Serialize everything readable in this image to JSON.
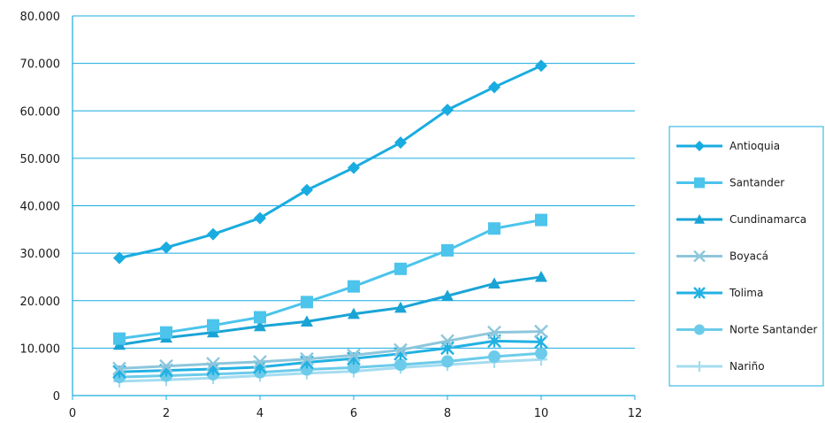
{
  "chart_data": {
    "type": "line",
    "title": "",
    "xlabel": "",
    "ylabel": "",
    "xlim": [
      0,
      12
    ],
    "ylim": [
      0,
      80000
    ],
    "x_ticks": [
      0,
      2,
      4,
      6,
      8,
      10,
      12
    ],
    "y_ticks": [
      0,
      10000,
      20000,
      30000,
      40000,
      50000,
      60000,
      70000,
      80000
    ],
    "x_tick_labels": [
      "0",
      "2",
      "4",
      "6",
      "8",
      "10",
      "12"
    ],
    "y_tick_labels": [
      "0",
      "10.000",
      "20.000",
      "30.000",
      "40.000",
      "50.000",
      "60.000",
      "70.000",
      "80.000"
    ],
    "grid": "horizontal",
    "legend_position": "right",
    "x": [
      1,
      2,
      3,
      4,
      5,
      6,
      7,
      8,
      9,
      10
    ],
    "series": [
      {
        "name": "Antioquia",
        "marker": "diamond",
        "color": "#19ace0",
        "values": [
          29000,
          31200,
          34000,
          37400,
          43300,
          48000,
          53300,
          60200,
          65000,
          69500
        ]
      },
      {
        "name": "Santander",
        "marker": "square",
        "color": "#4cc4ec",
        "values": [
          12000,
          13300,
          14800,
          16500,
          19700,
          23000,
          26700,
          30600,
          35200,
          37000
        ]
      },
      {
        "name": "Cundinamarca",
        "marker": "triangle",
        "color": "#1aa4d6",
        "values": [
          10700,
          12200,
          13300,
          14600,
          15600,
          17200,
          18500,
          21000,
          23600,
          25000
        ]
      },
      {
        "name": "Boyacá",
        "marker": "x",
        "color": "#8dc6dc",
        "values": [
          5700,
          6200,
          6700,
          7100,
          7700,
          8500,
          9600,
          11500,
          13300,
          13500
        ]
      },
      {
        "name": "Tolima",
        "marker": "star",
        "color": "#21b1e3",
        "values": [
          5000,
          5300,
          5600,
          6000,
          7000,
          7800,
          8800,
          10000,
          11500,
          11300
        ]
      },
      {
        "name": "Norte Santander",
        "marker": "circle",
        "color": "#6ccbea",
        "values": [
          3900,
          4200,
          4500,
          4900,
          5500,
          5900,
          6500,
          7200,
          8200,
          8900
        ]
      },
      {
        "name": "Nariño",
        "marker": "plus",
        "color": "#a5dcf0",
        "values": [
          3000,
          3300,
          3700,
          4200,
          4700,
          5100,
          5900,
          6500,
          7100,
          7600
        ]
      }
    ]
  }
}
